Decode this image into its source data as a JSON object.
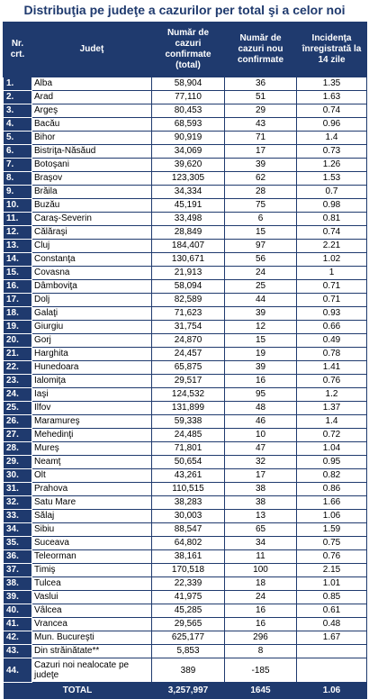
{
  "title": "Distribuţia pe judeţe a cazurilor per total şi a celor noi",
  "headers": {
    "nr": "Nr. crt.",
    "judet": "Judeţ",
    "total": "Număr de cazuri confirmate (total)",
    "new": "Număr de cazuri nou confirmate",
    "incidence": "Incidenţa înregistrată la 14 zile"
  },
  "rows": [
    {
      "nr": "1.",
      "judet": "Alba",
      "total": "58,904",
      "new": "36",
      "inc": "1.35"
    },
    {
      "nr": "2.",
      "judet": "Arad",
      "total": "77,110",
      "new": "51",
      "inc": "1.63"
    },
    {
      "nr": "3.",
      "judet": "Argeş",
      "total": "80,453",
      "new": "29",
      "inc": "0.74"
    },
    {
      "nr": "4.",
      "judet": "Bacău",
      "total": "68,593",
      "new": "43",
      "inc": "0.96"
    },
    {
      "nr": "5.",
      "judet": "Bihor",
      "total": "90,919",
      "new": "71",
      "inc": "1.4"
    },
    {
      "nr": "6.",
      "judet": "Bistriţa-Năsăud",
      "total": "34,069",
      "new": "17",
      "inc": "0.73"
    },
    {
      "nr": "7.",
      "judet": "Botoşani",
      "total": "39,620",
      "new": "39",
      "inc": "1.26"
    },
    {
      "nr": "8.",
      "judet": "Braşov",
      "total": "123,305",
      "new": "62",
      "inc": "1.53"
    },
    {
      "nr": "9.",
      "judet": "Brăila",
      "total": "34,334",
      "new": "28",
      "inc": "0.7"
    },
    {
      "nr": "10.",
      "judet": "Buzău",
      "total": "45,191",
      "new": "75",
      "inc": "0.98"
    },
    {
      "nr": "11.",
      "judet": "Caraş-Severin",
      "total": "33,498",
      "new": "6",
      "inc": "0.81"
    },
    {
      "nr": "12.",
      "judet": "Călăraşi",
      "total": "28,849",
      "new": "15",
      "inc": "0.74"
    },
    {
      "nr": "13.",
      "judet": "Cluj",
      "total": "184,407",
      "new": "97",
      "inc": "2.21"
    },
    {
      "nr": "14.",
      "judet": "Constanţa",
      "total": "130,671",
      "new": "56",
      "inc": "1.02"
    },
    {
      "nr": "15.",
      "judet": "Covasna",
      "total": "21,913",
      "new": "24",
      "inc": "1"
    },
    {
      "nr": "16.",
      "judet": "Dâmboviţa",
      "total": "58,094",
      "new": "25",
      "inc": "0.71"
    },
    {
      "nr": "17.",
      "judet": "Dolj",
      "total": "82,589",
      "new": "44",
      "inc": "0.71"
    },
    {
      "nr": "18.",
      "judet": "Galaţi",
      "total": "71,623",
      "new": "39",
      "inc": "0.93"
    },
    {
      "nr": "19.",
      "judet": "Giurgiu",
      "total": "31,754",
      "new": "12",
      "inc": "0.66"
    },
    {
      "nr": "20.",
      "judet": "Gorj",
      "total": "24,870",
      "new": "15",
      "inc": "0.49"
    },
    {
      "nr": "21.",
      "judet": "Harghita",
      "total": "24,457",
      "new": "19",
      "inc": "0.78"
    },
    {
      "nr": "22.",
      "judet": "Hunedoara",
      "total": "65,875",
      "new": "39",
      "inc": "1.41"
    },
    {
      "nr": "23.",
      "judet": "Ialomiţa",
      "total": "29,517",
      "new": "16",
      "inc": "0.76"
    },
    {
      "nr": "24.",
      "judet": "Iaşi",
      "total": "124,532",
      "new": "95",
      "inc": "1.2"
    },
    {
      "nr": "25.",
      "judet": "Ilfov",
      "total": "131,899",
      "new": "48",
      "inc": "1.37"
    },
    {
      "nr": "26.",
      "judet": "Maramureş",
      "total": "59,338",
      "new": "46",
      "inc": "1.4"
    },
    {
      "nr": "27.",
      "judet": "Mehedinţi",
      "total": "24,485",
      "new": "10",
      "inc": "0.72"
    },
    {
      "nr": "28.",
      "judet": "Mureş",
      "total": "71,801",
      "new": "47",
      "inc": "1.04"
    },
    {
      "nr": "29.",
      "judet": "Neamţ",
      "total": "50,654",
      "new": "32",
      "inc": "0.95"
    },
    {
      "nr": "30.",
      "judet": "Olt",
      "total": "43,261",
      "new": "17",
      "inc": "0.82"
    },
    {
      "nr": "31.",
      "judet": "Prahova",
      "total": "110,515",
      "new": "38",
      "inc": "0.86"
    },
    {
      "nr": "32.",
      "judet": "Satu Mare",
      "total": "38,283",
      "new": "38",
      "inc": "1.66"
    },
    {
      "nr": "33.",
      "judet": "Sălaj",
      "total": "30,003",
      "new": "13",
      "inc": "1.06"
    },
    {
      "nr": "34.",
      "judet": "Sibiu",
      "total": "88,547",
      "new": "65",
      "inc": "1.59"
    },
    {
      "nr": "35.",
      "judet": "Suceava",
      "total": "64,802",
      "new": "34",
      "inc": "0.75"
    },
    {
      "nr": "36.",
      "judet": "Teleorman",
      "total": "38,161",
      "new": "11",
      "inc": "0.76"
    },
    {
      "nr": "37.",
      "judet": "Timiş",
      "total": "170,518",
      "new": "100",
      "inc": "2.15"
    },
    {
      "nr": "38.",
      "judet": "Tulcea",
      "total": "22,339",
      "new": "18",
      "inc": "1.01"
    },
    {
      "nr": "39.",
      "judet": "Vaslui",
      "total": "41,975",
      "new": "24",
      "inc": "0.85"
    },
    {
      "nr": "40.",
      "judet": "Vâlcea",
      "total": "45,285",
      "new": "16",
      "inc": "0.61"
    },
    {
      "nr": "41.",
      "judet": "Vrancea",
      "total": "29,565",
      "new": "16",
      "inc": "0.48"
    },
    {
      "nr": "42.",
      "judet": "Mun. Bucureşti",
      "total": "625,177",
      "new": "296",
      "inc": "1.67"
    },
    {
      "nr": "43.",
      "judet": "Din străinătate**",
      "total": "5,853",
      "new": "8",
      "inc": ""
    },
    {
      "nr": "44.",
      "judet": "Cazuri noi nealocate pe judeţe",
      "total": "389",
      "new": "-185",
      "inc": ""
    }
  ],
  "total": {
    "label": "TOTAL",
    "total": "3,257,997",
    "new": "1645",
    "inc": "1.06"
  },
  "colors": {
    "header_bg": "#1f3a6e",
    "title": "#1f3a6e"
  }
}
